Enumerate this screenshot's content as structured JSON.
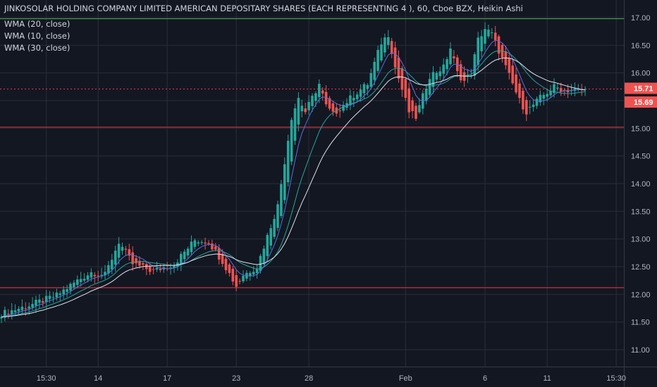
{
  "header": {
    "title": "JINKOSOLAR HOLDING COMPANY LIMITED AMERICAN DEPOSITARY SHARES (EACH REPRESENTING 4 ), 60, Cboe BZX, Heikin Ashi",
    "indicators": [
      "WMA (20, close)",
      "WMA (10, close)",
      "WMA (30, close)"
    ]
  },
  "colors": {
    "background": "#131722",
    "grid": "#2a2e39",
    "up": "#26a69a",
    "down": "#ef5350",
    "wma20": "#26a69a",
    "wma10": "#5b6ee1",
    "wma30": "#e0e3eb",
    "axis_text": "#b2b5be"
  },
  "chart_data": {
    "type": "candlestick",
    "style": "Heikin Ashi",
    "interval": "60",
    "exchange": "Cboe BZX",
    "x_tick_labels": [
      "15:30",
      "14",
      "17",
      "23",
      "28",
      "Feb",
      "6",
      "11",
      "15:30"
    ],
    "y_tick_labels": [
      "11.00",
      "11.50",
      "12.00",
      "12.50",
      "13.00",
      "13.50",
      "14.00",
      "14.50",
      "15.00",
      "15.50",
      "16.00",
      "16.50",
      "17.00"
    ],
    "ylim": [
      10.72,
      17.28
    ],
    "price_labels": {
      "last": "15.71",
      "current": "15.69"
    },
    "horizontal_lines": [
      {
        "price": 16.98,
        "color": "#4caf50",
        "style": "solid"
      },
      {
        "price": 15.02,
        "color": "#f23645",
        "style": "solid"
      },
      {
        "price": 12.12,
        "color": "#f23645",
        "style": "solid"
      },
      {
        "price": 15.71,
        "color": "#f23645",
        "style": "dotted"
      }
    ],
    "candle_count": 170,
    "close_path": [
      [
        0,
        11.65
      ],
      [
        8,
        11.8
      ],
      [
        16,
        11.98
      ],
      [
        22,
        12.25
      ],
      [
        26,
        12.4
      ],
      [
        30,
        12.35
      ],
      [
        34,
        12.95
      ],
      [
        38,
        12.55
      ],
      [
        44,
        12.42
      ],
      [
        50,
        12.55
      ],
      [
        56,
        12.98
      ],
      [
        60,
        12.95
      ],
      [
        64,
        12.6
      ],
      [
        68,
        12.15
      ],
      [
        70,
        12.35
      ],
      [
        74,
        12.5
      ],
      [
        80,
        13.6
      ],
      [
        84,
        15.2
      ],
      [
        86,
        15.55
      ],
      [
        88,
        15.3
      ],
      [
        92,
        15.8
      ],
      [
        94,
        15.4
      ],
      [
        96,
        15.25
      ],
      [
        102,
        15.6
      ],
      [
        106,
        15.8
      ],
      [
        110,
        16.55
      ],
      [
        112,
        16.7
      ],
      [
        114,
        16.1
      ],
      [
        116,
        15.7
      ],
      [
        118,
        15.3
      ],
      [
        120,
        15.2
      ],
      [
        124,
        15.95
      ],
      [
        128,
        16.1
      ],
      [
        130,
        16.45
      ],
      [
        132,
        16.0
      ],
      [
        134,
        15.85
      ],
      [
        136,
        16.0
      ],
      [
        138,
        16.6
      ],
      [
        140,
        16.8
      ],
      [
        142,
        16.7
      ],
      [
        146,
        16.1
      ],
      [
        150,
        15.5
      ],
      [
        152,
        15.3
      ],
      [
        156,
        15.55
      ],
      [
        160,
        15.75
      ],
      [
        163,
        15.69
      ]
    ],
    "wma": [
      {
        "name": "WMA (20, close)",
        "period": 20
      },
      {
        "name": "WMA (10, close)",
        "period": 10
      },
      {
        "name": "WMA (30, close)",
        "period": 30
      }
    ]
  }
}
